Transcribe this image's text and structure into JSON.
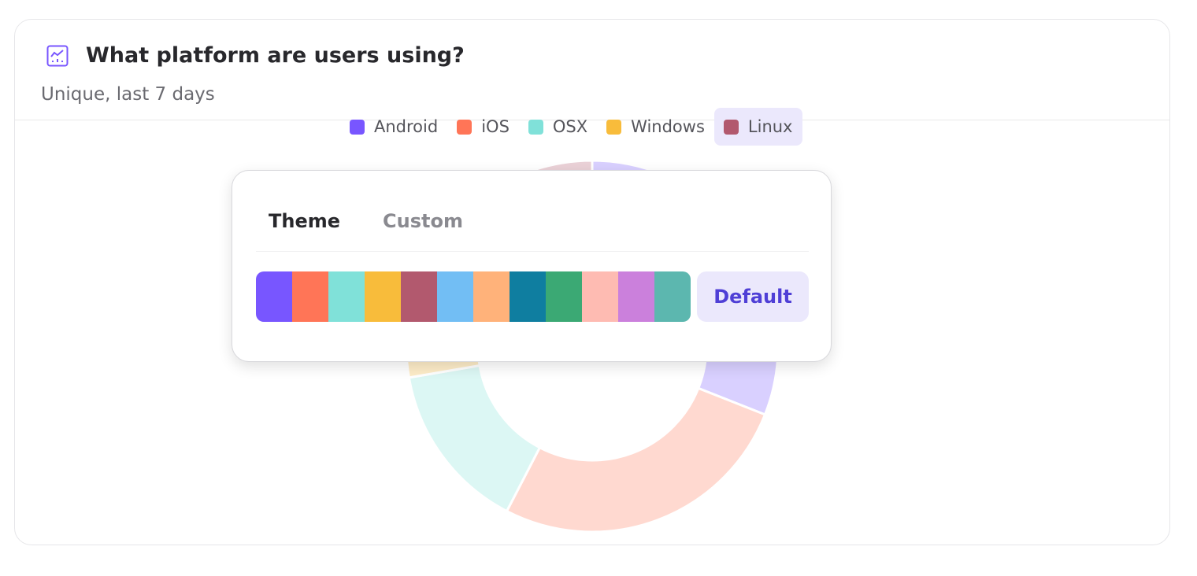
{
  "card": {
    "title": "What platform are users using?",
    "subtitle": "Unique, last 7 days",
    "icon": "line-chart-icon",
    "accent": "#7856ff"
  },
  "chart_data": {
    "type": "pie",
    "style": "donut",
    "categories": [
      "Android",
      "iOS",
      "OSX",
      "Windows",
      "Linux"
    ],
    "values": [
      31,
      26.6,
      14.7,
      6.8,
      20.9
    ],
    "colors": [
      "#7856ff",
      "#ff7557",
      "#80e1d9",
      "#f8bc3b",
      "#b2596e"
    ],
    "legend": "top",
    "highlighted": "Linux"
  },
  "popover": {
    "tabs": [
      {
        "label": "Theme",
        "active": true
      },
      {
        "label": "Custom",
        "active": false
      }
    ],
    "palette": [
      "#7856ff",
      "#ff7557",
      "#80e1d9",
      "#f8bc3b",
      "#b2596e",
      "#72bef4",
      "#ffb27a",
      "#0f7ea0",
      "#3ba974",
      "#febbb2",
      "#cb80dc",
      "#5cb7af"
    ],
    "default_label": "Default"
  }
}
